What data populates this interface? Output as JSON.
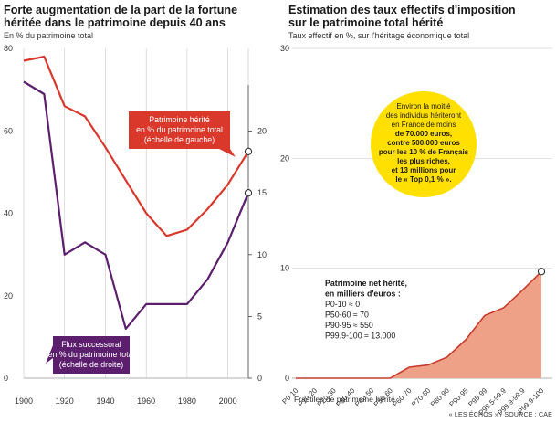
{
  "charts": {
    "left": {
      "title_line1": "Forte augmentation de la part de la fortune",
      "title_line2": "héritée dans le patrimoine depuis 40 ans",
      "subtitle": "En % du patrimoine total"
    },
    "right": {
      "title_line1": "Estimation des taux effectifs d'imposition",
      "title_line2": "sur le patrimoine total hérité",
      "subtitle": "Taux effectif en %, sur l'héritage économique total"
    }
  },
  "source": "« LES ÉCHOS » / SOURCE : CAE",
  "colors": {
    "red": "#d9382b",
    "purple": "#5c1f6e",
    "yellow": "#ffe000",
    "area": "#eea186",
    "area_line": "#c93a2a",
    "axis": "#999999"
  },
  "chart_data": [
    {
      "type": "line",
      "title": "Forte augmentation de la part de la fortune héritée dans le patrimoine depuis 40 ans",
      "ylabel": "En % du patrimoine total",
      "x_ticks": [
        1900,
        1920,
        1940,
        1960,
        1980,
        2000
      ],
      "xlim": [
        1900,
        2010
      ],
      "y_left_ticks": [
        0,
        20,
        40,
        60,
        80
      ],
      "y_left_lim": [
        0,
        80
      ],
      "y_right_ticks": [
        0,
        5,
        10,
        15,
        20
      ],
      "y_right_lim": [
        0,
        26.7
      ],
      "series": [
        {
          "name": "Patrimoine hérité en % du patrimoine total (échelle de gauche)",
          "label_lines": [
            "Patrimoine hérité",
            "en % du patrimoine total",
            "(échelle de gauche)"
          ],
          "axis": "left",
          "color": "#d9382b",
          "x": [
            1900,
            1910,
            1920,
            1930,
            1940,
            1950,
            1960,
            1970,
            1980,
            1990,
            2000,
            2010
          ],
          "y": [
            77,
            78,
            66,
            63.5,
            56,
            48,
            40,
            34.5,
            36,
            41,
            47,
            55
          ]
        },
        {
          "name": "Flux successoral en % du patrimoine total (échelle de droite)",
          "label_lines": [
            "Flux successoral",
            "en % du patrimoine total",
            "(échelle de droite)"
          ],
          "axis": "right",
          "color": "#5c1f6e",
          "x": [
            1900,
            1910,
            1920,
            1930,
            1940,
            1950,
            1960,
            1970,
            1980,
            1990,
            2000,
            2010
          ],
          "y": [
            24,
            23,
            10,
            11,
            10,
            4,
            6,
            6,
            6,
            8,
            11,
            15
          ]
        }
      ]
    },
    {
      "type": "area",
      "title": "Estimation des taux effectifs d'imposition sur le patrimoine total hérité",
      "ylabel": "Taux effectif en %, sur l'héritage économique total",
      "xlabel": "Fractiles de patrimoine hérité",
      "categories": [
        "P0-10",
        "P10-20",
        "P20-30",
        "P30-40",
        "P40-50",
        "P50-60",
        "P60-70",
        "P70-80",
        "P80-90",
        "P90-95",
        "P95-99",
        "P99.5-99.9",
        "P99.9-99.9",
        "P99.9-100"
      ],
      "values": [
        0,
        0,
        0,
        0,
        0,
        0,
        1,
        1.2,
        1.9,
        3.5,
        5.7,
        6.4,
        8,
        9.7
      ],
      "y_ticks": [
        0,
        10,
        20,
        30
      ],
      "ylim": [
        0,
        30
      ],
      "color": "#eea186",
      "annotation_bubble": [
        "Environ la moitié",
        "des individus hériteront",
        "en France de moins",
        "de 70.000 euros,",
        "contre 500.000 euros",
        "pour les 10 % de Français",
        "les plus riches,",
        "et 13 millions pour",
        "le « Top 0,1 % »."
      ],
      "annotation_box": [
        "Patrimoine net hérité,",
        "en milliers d'euros :",
        "P0-10 ≈ 0",
        "P50-60 ≈ 70",
        "P90-95 ≈ 550",
        "P99.9-100 ≈ 13.000"
      ]
    }
  ]
}
